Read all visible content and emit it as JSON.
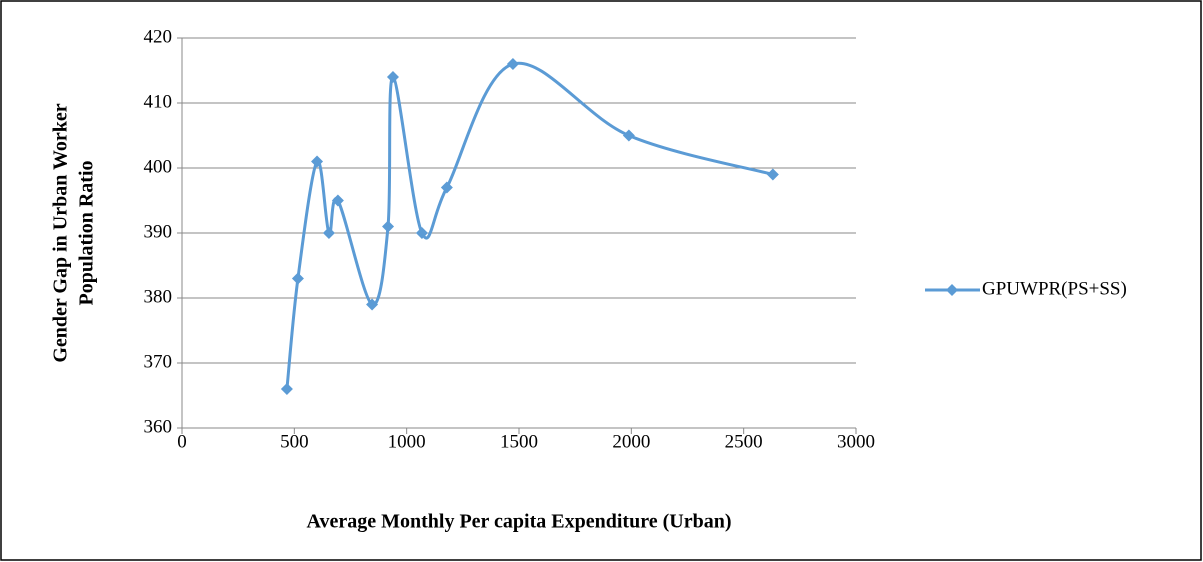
{
  "chart_data": {
    "type": "line",
    "smooth": true,
    "x": [
      467,
      516,
      601,
      654,
      694,
      846,
      917,
      939,
      1068,
      1179,
      1473,
      1989,
      2630
    ],
    "series": [
      {
        "name": "GPUWPR(PS+SS)",
        "color": "#5b9bd5",
        "values": [
          366,
          383,
          401,
          390,
          395,
          379,
          391,
          414,
          390,
          397,
          416,
          405,
          399
        ]
      }
    ],
    "xlim": [
      0,
      3000
    ],
    "xticks": [
      0,
      500,
      1000,
      1500,
      2000,
      2500,
      3000
    ],
    "ylim": [
      360,
      420
    ],
    "yticks": [
      360,
      370,
      380,
      390,
      400,
      410,
      420
    ],
    "grid": true,
    "legend": "right",
    "x_label": "Average Monthly Per capita Expenditure (Urban)",
    "y_label": [
      "Gender Gap in Urban Worker",
      "Population Ratio"
    ]
  }
}
